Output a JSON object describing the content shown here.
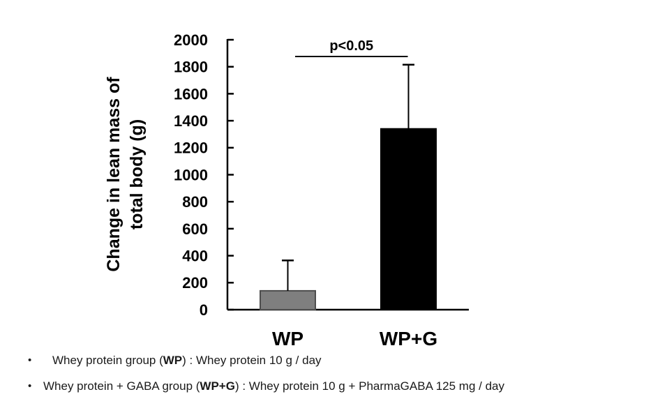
{
  "page": {
    "background": "#ffffff"
  },
  "chart_data": {
    "type": "bar",
    "title": "",
    "categories": [
      "WP",
      "WP+G"
    ],
    "values": [
      140,
      1340
    ],
    "errors_upper": [
      225,
      475
    ],
    "bar_colors": [
      "#7f7f7f",
      "#000000"
    ],
    "bar_border_colors": [
      "#4d4d4d",
      "#000000"
    ],
    "xlabel": "",
    "ylabel": "Change in lean mass of total body (g)",
    "ylabel_lines": [
      "Change in lean mass of",
      "total body (g)"
    ],
    "ylim": [
      0,
      2000
    ],
    "yticks": [
      0,
      200,
      400,
      600,
      800,
      1000,
      1200,
      1400,
      1600,
      1800,
      2000
    ],
    "grid": false,
    "legend": "none",
    "annotations": [
      {
        "type": "significance_bracket",
        "label": "p<0.05",
        "from": "WP",
        "to": "WP+G"
      }
    ],
    "axis_color": "#000000",
    "text_color": "#000000"
  },
  "notes": {
    "bullets": [
      {
        "marker": "•",
        "pre": "Whey protein group (",
        "bold": "WP",
        "post": ") : Whey protein 10 g / day"
      },
      {
        "marker": "•",
        "pre": "Whey protein + GABA group (",
        "bold": "WP+G",
        "post": ") : Whey protein 10 g + PharmaGABA 125 mg / day"
      }
    ]
  }
}
